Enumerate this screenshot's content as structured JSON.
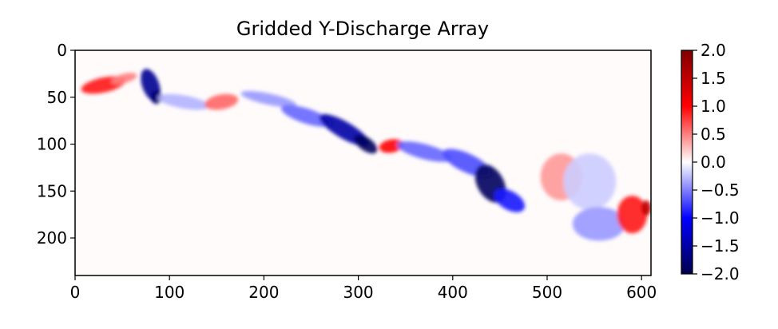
{
  "chart_data": {
    "type": "heatmap",
    "title": "Gridded Y-Discharge Array",
    "xlabel": "",
    "ylabel": "",
    "xlim": [
      0,
      610
    ],
    "ylim": [
      240,
      0
    ],
    "x_ticks": [
      0,
      100,
      200,
      300,
      400,
      500,
      600
    ],
    "y_ticks": [
      0,
      50,
      100,
      150,
      200
    ],
    "grid": false,
    "colormap": "seismic",
    "colorbar": {
      "range": [
        -2.0,
        2.0
      ],
      "ticks": [
        "2.0",
        "1.5",
        "1.0",
        "0.5",
        "0.0",
        "−0.5",
        "−1.0",
        "−1.5",
        "−2.0"
      ],
      "placement": "right"
    },
    "background_value": 0.0,
    "features": [
      {
        "x": 30,
        "y": 37,
        "rx": 24,
        "ry": 8,
        "rot": -12,
        "value": 0.9
      },
      {
        "x": 52,
        "y": 30,
        "rx": 14,
        "ry": 5,
        "rot": -15,
        "value": 0.5
      },
      {
        "x": 80,
        "y": 37,
        "rx": 9,
        "ry": 18,
        "rot": -20,
        "value": -1.6
      },
      {
        "x": 86,
        "y": 50,
        "rx": 6,
        "ry": 7,
        "rot": 0,
        "value": -1.8
      },
      {
        "x": 115,
        "y": 55,
        "rx": 28,
        "ry": 7,
        "rot": 10,
        "value": -0.3
      },
      {
        "x": 155,
        "y": 55,
        "rx": 18,
        "ry": 8,
        "rot": -10,
        "value": 0.6
      },
      {
        "x": 205,
        "y": 52,
        "rx": 30,
        "ry": 6,
        "rot": 12,
        "value": -0.4
      },
      {
        "x": 245,
        "y": 70,
        "rx": 28,
        "ry": 8,
        "rot": 18,
        "value": -0.6
      },
      {
        "x": 285,
        "y": 85,
        "rx": 30,
        "ry": 9,
        "rot": 30,
        "value": -1.5
      },
      {
        "x": 308,
        "y": 100,
        "rx": 14,
        "ry": 7,
        "rot": 35,
        "value": -1.9
      },
      {
        "x": 335,
        "y": 102,
        "rx": 13,
        "ry": 7,
        "rot": -10,
        "value": 1.0
      },
      {
        "x": 370,
        "y": 108,
        "rx": 30,
        "ry": 8,
        "rot": 15,
        "value": -0.6
      },
      {
        "x": 415,
        "y": 120,
        "rx": 28,
        "ry": 10,
        "rot": 25,
        "value": -0.7
      },
      {
        "x": 440,
        "y": 142,
        "rx": 14,
        "ry": 22,
        "rot": -30,
        "value": -1.9
      },
      {
        "x": 460,
        "y": 160,
        "rx": 18,
        "ry": 10,
        "rot": 30,
        "value": -0.9
      },
      {
        "x": 515,
        "y": 135,
        "rx": 22,
        "ry": 25,
        "rot": 0,
        "value": 0.4
      },
      {
        "x": 545,
        "y": 140,
        "rx": 28,
        "ry": 30,
        "rot": 0,
        "value": -0.2
      },
      {
        "x": 555,
        "y": 185,
        "rx": 28,
        "ry": 18,
        "rot": 0,
        "value": -0.4
      },
      {
        "x": 590,
        "y": 175,
        "rx": 16,
        "ry": 20,
        "rot": 0,
        "value": 0.9
      },
      {
        "x": 605,
        "y": 168,
        "rx": 5,
        "ry": 8,
        "rot": 0,
        "value": 1.5
      }
    ]
  }
}
